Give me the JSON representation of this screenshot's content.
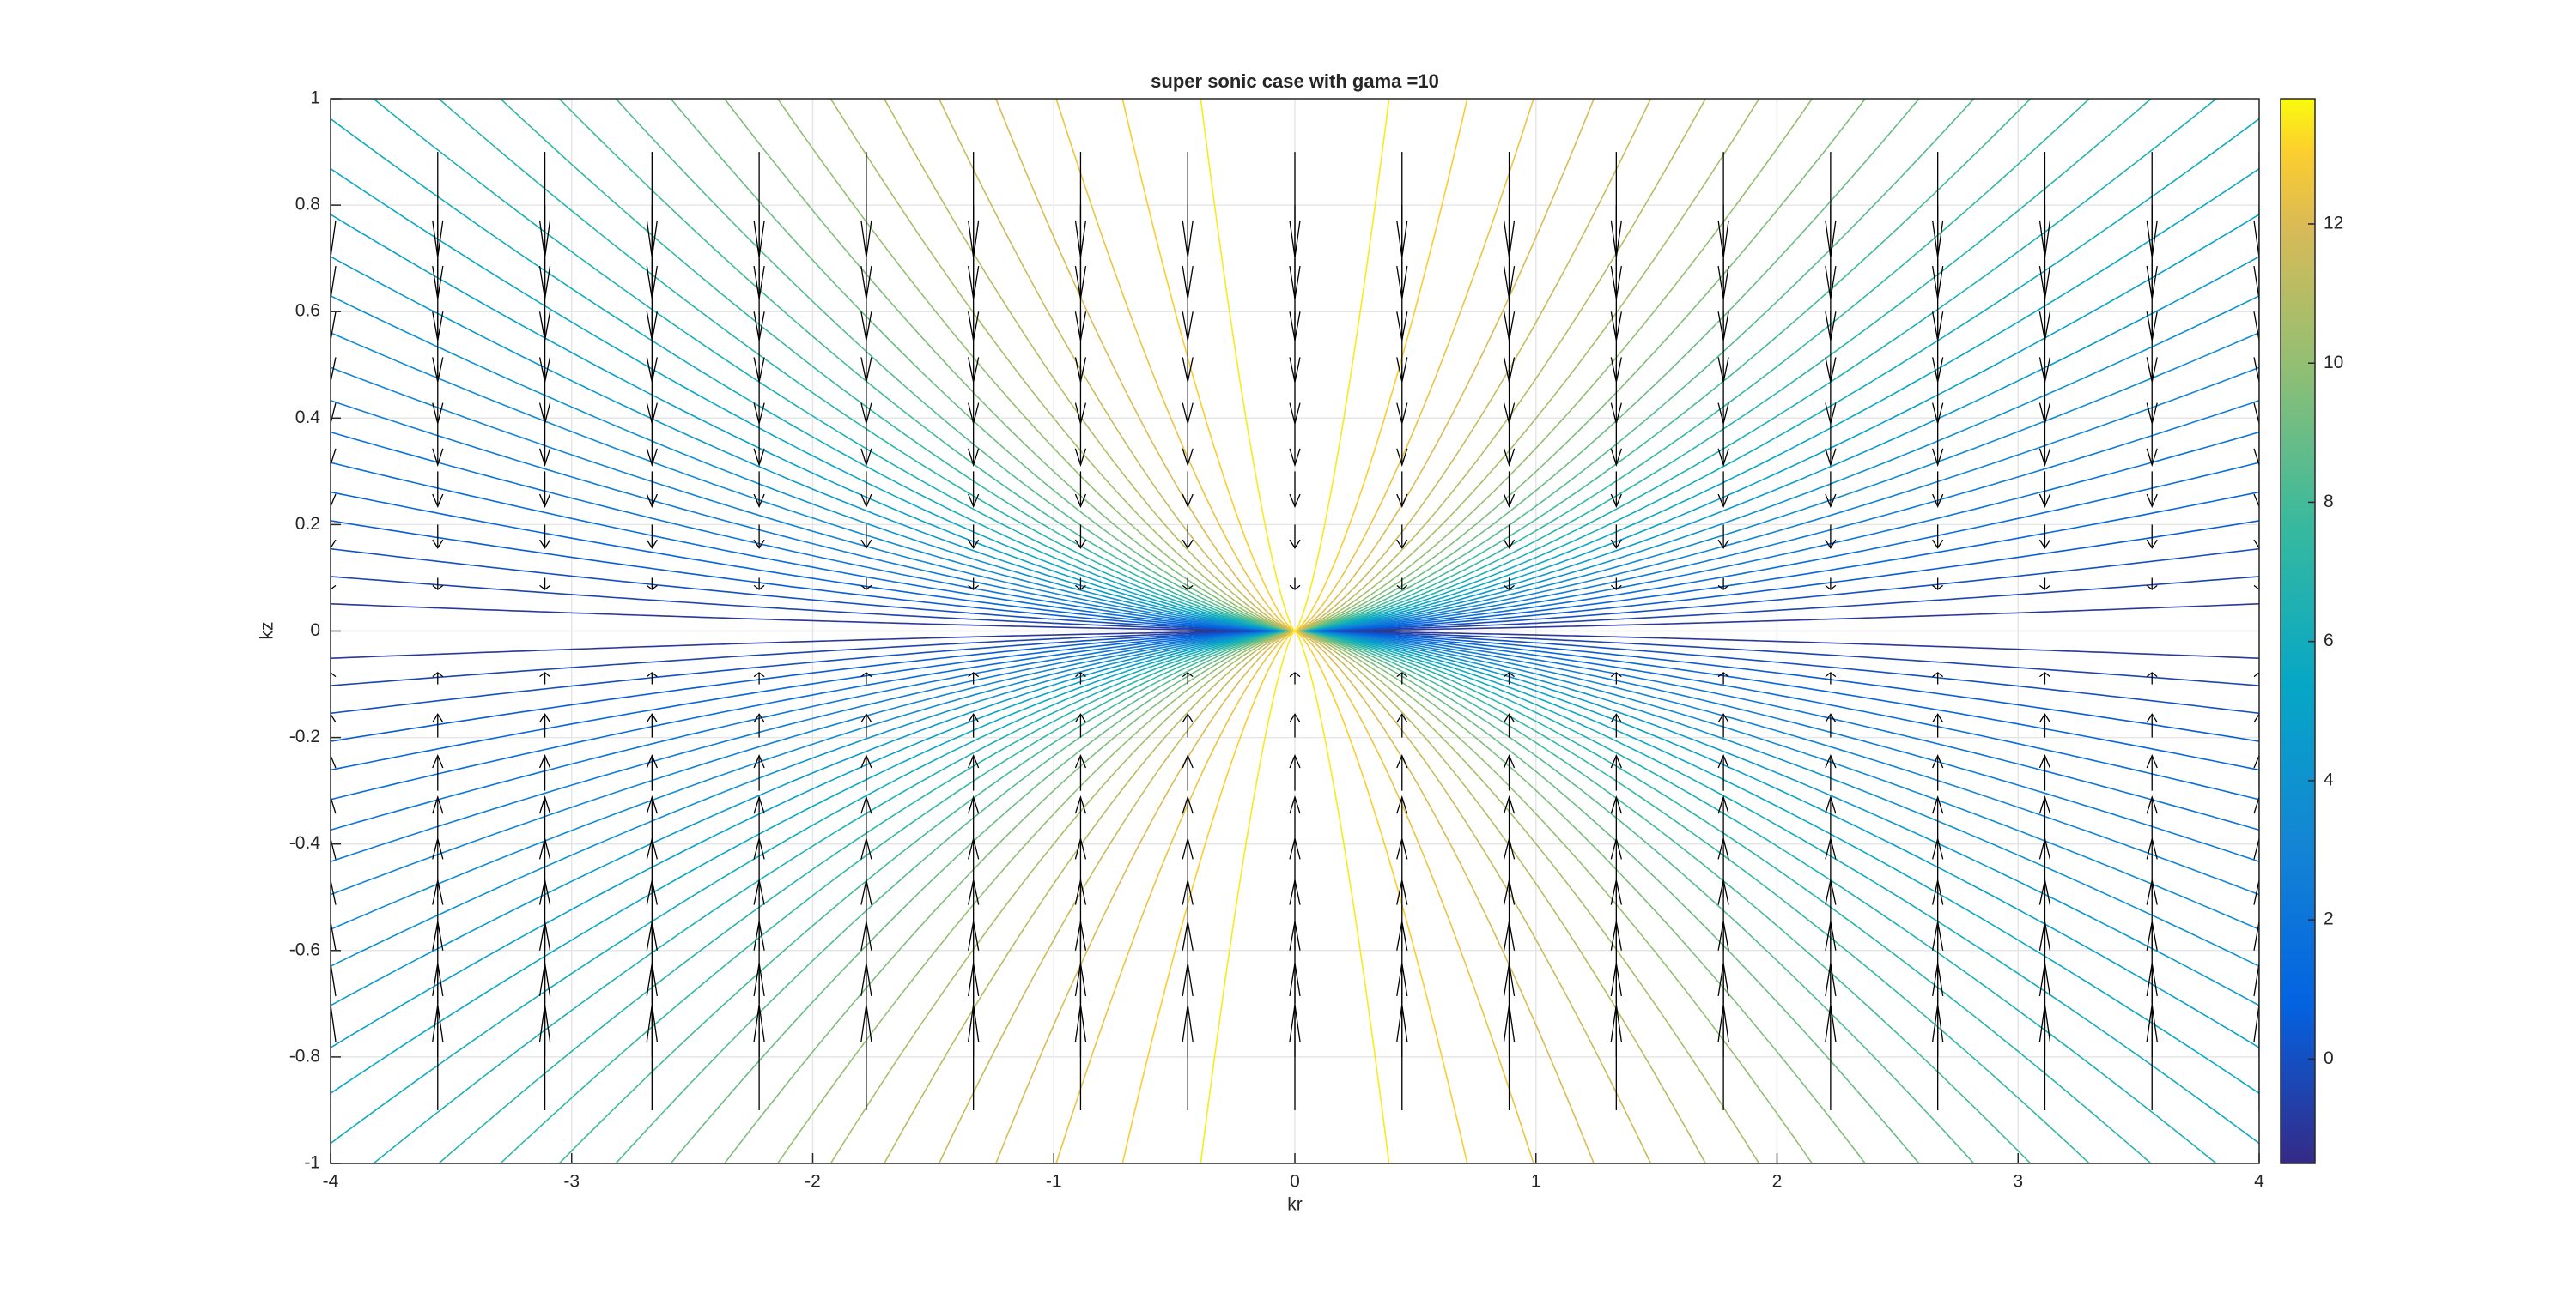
{
  "chart_data": {
    "type": "contour",
    "title": "super sonic case with gama =10",
    "xlabel": "kr",
    "ylabel": "kz",
    "xlim": [
      -4,
      4
    ],
    "ylim": [
      -1,
      1
    ],
    "xticks": [
      -4,
      -3,
      -2,
      -1,
      0,
      1,
      2,
      3,
      4
    ],
    "yticks": [
      -1,
      -0.8,
      -0.6,
      -0.4,
      -0.2,
      0,
      0.2,
      0.4,
      0.6,
      0.8,
      1
    ],
    "grid": true,
    "levels": [
      -1,
      -0.5,
      0,
      0.5,
      1,
      1.5,
      2,
      2.5,
      3,
      3.5,
      4,
      4.5,
      5,
      5.5,
      6,
      6.5,
      7,
      7.5,
      8,
      8.5,
      9,
      9.5,
      10,
      10.5,
      11,
      11.5,
      12,
      12.5,
      13,
      13.5
    ],
    "colorbar": {
      "clim": [
        -1.5,
        13.8
      ],
      "ticks": [
        0,
        2,
        4,
        6,
        8,
        10,
        12
      ]
    }
  }
}
